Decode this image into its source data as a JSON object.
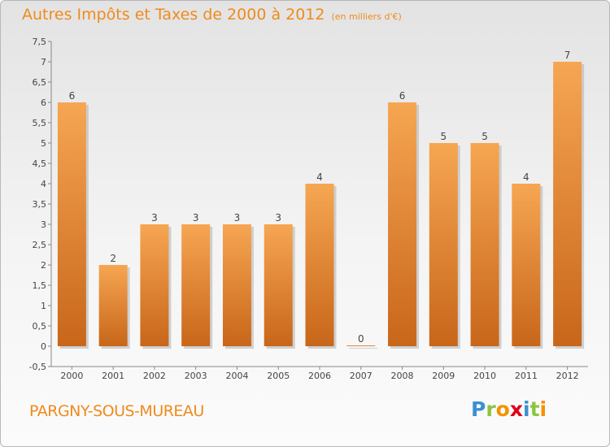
{
  "chart_data": {
    "type": "bar",
    "title": "Autres Impôts et Taxes de 2000 à 2012",
    "subtitle": "(en milliers d'€)",
    "categories": [
      "2000",
      "2001",
      "2002",
      "2003",
      "2004",
      "2005",
      "2006",
      "2007",
      "2008",
      "2009",
      "2010",
      "2011",
      "2012"
    ],
    "values": [
      6,
      2,
      3,
      3,
      3,
      3,
      4,
      0,
      6,
      5,
      5,
      4,
      7
    ],
    "data_labels": [
      "6",
      "2",
      "3",
      "3",
      "3",
      "3",
      "4",
      "0",
      "6",
      "5",
      "5",
      "4",
      "7"
    ],
    "ylim": [
      -0.5,
      7.5
    ],
    "yticks": [
      -0.5,
      0,
      0.5,
      1,
      1.5,
      2,
      2.5,
      3,
      3.5,
      4,
      4.5,
      5,
      5.5,
      6,
      6.5,
      7,
      7.5
    ],
    "ytick_labels": [
      "-0,5",
      "0",
      "0,5",
      "1",
      "1,5",
      "2",
      "2,5",
      "3",
      "3,5",
      "4",
      "4,5",
      "5",
      "5,5",
      "6",
      "6,5",
      "7",
      "7,5"
    ],
    "grid": false,
    "legend": "none"
  },
  "commune": "PARGNY-SOUS-MUREAU",
  "logo": {
    "text": "Proxiti",
    "letters": [
      "P",
      "r",
      "o",
      "x",
      "i",
      "t",
      "i"
    ],
    "colors": [
      "#3d8fd1",
      "#8bc53f",
      "#f39200",
      "#e2001a",
      "#3d8fd1",
      "#8bc53f",
      "#f39200"
    ]
  },
  "colors": {
    "title": "#f08a1c",
    "bar_light": "#f6a652",
    "bar_dark": "#c8661a",
    "axis": "#888888"
  }
}
